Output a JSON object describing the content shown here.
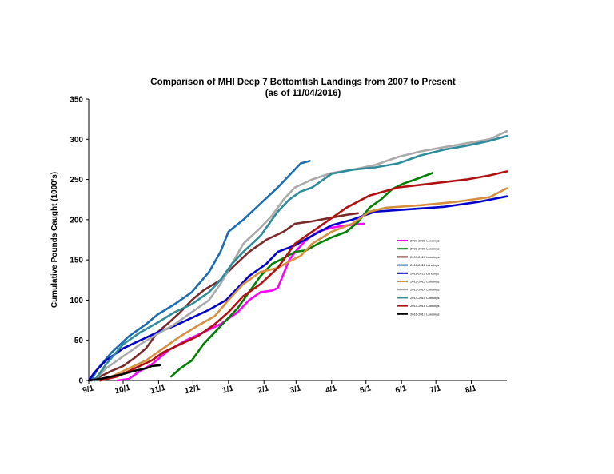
{
  "chart_data": {
    "type": "line",
    "title": "Comparison of MHI Deep 7 Bottomfish Landings from 2007 to Present",
    "subtitle": "(as of 11/04/2016)",
    "ylabel": "Cumulative Pounds Caught (1000's)",
    "xlabel": "",
    "ylim": [
      0,
      350
    ],
    "yticks": [
      0,
      50,
      100,
      150,
      200,
      250,
      300,
      350
    ],
    "xlim": [
      0,
      365
    ],
    "xticks": [
      {
        "day": 0,
        "label": "9/1"
      },
      {
        "day": 30,
        "label": "10/1"
      },
      {
        "day": 61,
        "label": "11/1"
      },
      {
        "day": 91,
        "label": "12/1"
      },
      {
        "day": 122,
        "label": "1/1"
      },
      {
        "day": 153,
        "label": "2/1"
      },
      {
        "day": 181,
        "label": "3/1"
      },
      {
        "day": 212,
        "label": "4/1"
      },
      {
        "day": 242,
        "label": "5/1"
      },
      {
        "day": 273,
        "label": "6/1"
      },
      {
        "day": 303,
        "label": "7/1"
      },
      {
        "day": 334,
        "label": "8/1"
      }
    ],
    "legend_position": "right",
    "series": [
      {
        "name": "2007-2008 Landings",
        "color": "#ff00ff",
        "points": [
          [
            25,
            0
          ],
          [
            35,
            2
          ],
          [
            45,
            12
          ],
          [
            55,
            20
          ],
          [
            70,
            38
          ],
          [
            85,
            50
          ],
          [
            100,
            60
          ],
          [
            115,
            70
          ],
          [
            130,
            85
          ],
          [
            140,
            100
          ],
          [
            150,
            110
          ],
          [
            160,
            112
          ],
          [
            165,
            115
          ],
          [
            175,
            150
          ],
          [
            182,
            163
          ],
          [
            190,
            175
          ],
          [
            200,
            185
          ],
          [
            212,
            190
          ],
          [
            225,
            193
          ],
          [
            240,
            195
          ]
        ]
      },
      {
        "name": "2008-2009 Landings",
        "color": "#008000",
        "points": [
          [
            72,
            5
          ],
          [
            80,
            15
          ],
          [
            90,
            25
          ],
          [
            100,
            45
          ],
          [
            110,
            60
          ],
          [
            120,
            75
          ],
          [
            130,
            90
          ],
          [
            140,
            110
          ],
          [
            150,
            130
          ],
          [
            160,
            145
          ],
          [
            170,
            152
          ],
          [
            180,
            160
          ],
          [
            190,
            162
          ],
          [
            200,
            170
          ],
          [
            212,
            178
          ],
          [
            225,
            185
          ],
          [
            235,
            197
          ],
          [
            245,
            215
          ],
          [
            255,
            225
          ],
          [
            265,
            238
          ],
          [
            275,
            245
          ],
          [
            285,
            250
          ],
          [
            300,
            258
          ]
        ]
      },
      {
        "name": "2009-2010 Landings",
        "color": "#7b2a2a",
        "points": [
          [
            2,
            0
          ],
          [
            10,
            5
          ],
          [
            20,
            12
          ],
          [
            30,
            18
          ],
          [
            40,
            28
          ],
          [
            50,
            40
          ],
          [
            60,
            60
          ],
          [
            70,
            72
          ],
          [
            80,
            85
          ],
          [
            90,
            100
          ],
          [
            100,
            112
          ],
          [
            115,
            125
          ],
          [
            125,
            140
          ],
          [
            140,
            160
          ],
          [
            155,
            175
          ],
          [
            170,
            185
          ],
          [
            180,
            195
          ],
          [
            195,
            198
          ],
          [
            210,
            202
          ],
          [
            225,
            206
          ],
          [
            235,
            208
          ]
        ]
      },
      {
        "name": "2010-2011 Landings",
        "color": "#1a6db5",
        "points": [
          [
            2,
            0
          ],
          [
            8,
            15
          ],
          [
            20,
            35
          ],
          [
            35,
            55
          ],
          [
            50,
            70
          ],
          [
            60,
            82
          ],
          [
            75,
            95
          ],
          [
            90,
            110
          ],
          [
            105,
            135
          ],
          [
            115,
            160
          ],
          [
            122,
            185
          ],
          [
            135,
            200
          ],
          [
            150,
            220
          ],
          [
            165,
            240
          ],
          [
            175,
            255
          ],
          [
            185,
            270
          ],
          [
            193,
            273
          ]
        ]
      },
      {
        "name": "2011-2012 Landings",
        "color": "#0000cc",
        "points": [
          [
            0,
            0
          ],
          [
            5,
            10
          ],
          [
            15,
            25
          ],
          [
            30,
            40
          ],
          [
            45,
            50
          ],
          [
            60,
            60
          ],
          [
            75,
            68
          ],
          [
            90,
            78
          ],
          [
            105,
            88
          ],
          [
            120,
            100
          ],
          [
            130,
            115
          ],
          [
            140,
            130
          ],
          [
            155,
            145
          ],
          [
            165,
            160
          ],
          [
            180,
            168
          ],
          [
            195,
            180
          ],
          [
            212,
            193
          ],
          [
            230,
            200
          ],
          [
            250,
            210
          ],
          [
            280,
            213
          ],
          [
            310,
            216
          ],
          [
            340,
            222
          ],
          [
            365,
            229
          ]
        ]
      },
      {
        "name": "2012-2013 Landings",
        "color": "#d78f3c",
        "points": [
          [
            10,
            0
          ],
          [
            20,
            5
          ],
          [
            35,
            15
          ],
          [
            50,
            25
          ],
          [
            65,
            40
          ],
          [
            80,
            55
          ],
          [
            95,
            68
          ],
          [
            110,
            80
          ],
          [
            122,
            100
          ],
          [
            135,
            120
          ],
          [
            150,
            135
          ],
          [
            165,
            140
          ],
          [
            175,
            148
          ],
          [
            185,
            155
          ],
          [
            195,
            170
          ],
          [
            212,
            185
          ],
          [
            230,
            195
          ],
          [
            245,
            210
          ],
          [
            260,
            215
          ],
          [
            290,
            218
          ],
          [
            320,
            222
          ],
          [
            350,
            228
          ],
          [
            365,
            239
          ]
        ]
      },
      {
        "name": "2013-2014 Landings",
        "color": "#aaaaaa",
        "points": [
          [
            5,
            0
          ],
          [
            15,
            15
          ],
          [
            30,
            30
          ],
          [
            45,
            45
          ],
          [
            60,
            58
          ],
          [
            75,
            70
          ],
          [
            90,
            85
          ],
          [
            105,
            100
          ],
          [
            115,
            120
          ],
          [
            125,
            145
          ],
          [
            135,
            170
          ],
          [
            150,
            190
          ],
          [
            160,
            205
          ],
          [
            170,
            225
          ],
          [
            180,
            240
          ],
          [
            195,
            250
          ],
          [
            212,
            258
          ],
          [
            230,
            262
          ],
          [
            250,
            268
          ],
          [
            270,
            278
          ],
          [
            290,
            285
          ],
          [
            310,
            290
          ],
          [
            330,
            295
          ],
          [
            350,
            300
          ],
          [
            365,
            310
          ]
        ]
      },
      {
        "name": "2014-2015 Landings",
        "color": "#2e8b9a",
        "points": [
          [
            5,
            0
          ],
          [
            15,
            20
          ],
          [
            30,
            45
          ],
          [
            45,
            60
          ],
          [
            60,
            72
          ],
          [
            75,
            85
          ],
          [
            90,
            95
          ],
          [
            105,
            110
          ],
          [
            115,
            125
          ],
          [
            125,
            145
          ],
          [
            135,
            160
          ],
          [
            150,
            180
          ],
          [
            165,
            210
          ],
          [
            175,
            225
          ],
          [
            185,
            235
          ],
          [
            195,
            240
          ],
          [
            212,
            257
          ],
          [
            230,
            262
          ],
          [
            250,
            265
          ],
          [
            270,
            270
          ],
          [
            290,
            280
          ],
          [
            310,
            287
          ],
          [
            330,
            292
          ],
          [
            350,
            298
          ],
          [
            365,
            304
          ]
        ]
      },
      {
        "name": "2015-2016 Landings",
        "color": "#b01010",
        "points": [
          [
            10,
            0
          ],
          [
            25,
            5
          ],
          [
            40,
            15
          ],
          [
            55,
            25
          ],
          [
            65,
            35
          ],
          [
            80,
            45
          ],
          [
            95,
            55
          ],
          [
            110,
            70
          ],
          [
            122,
            85
          ],
          [
            135,
            105
          ],
          [
            150,
            120
          ],
          [
            165,
            140
          ],
          [
            180,
            170
          ],
          [
            195,
            185
          ],
          [
            210,
            200
          ],
          [
            225,
            215
          ],
          [
            245,
            230
          ],
          [
            270,
            240
          ],
          [
            300,
            245
          ],
          [
            330,
            250
          ],
          [
            350,
            255
          ],
          [
            365,
            260
          ]
        ]
      },
      {
        "name": "2016-2017 Landings",
        "color": "#000000",
        "points": [
          [
            0,
            0
          ],
          [
            10,
            2
          ],
          [
            20,
            5
          ],
          [
            30,
            8
          ],
          [
            40,
            12
          ],
          [
            50,
            15
          ],
          [
            55,
            18
          ],
          [
            62,
            19
          ]
        ]
      }
    ]
  }
}
